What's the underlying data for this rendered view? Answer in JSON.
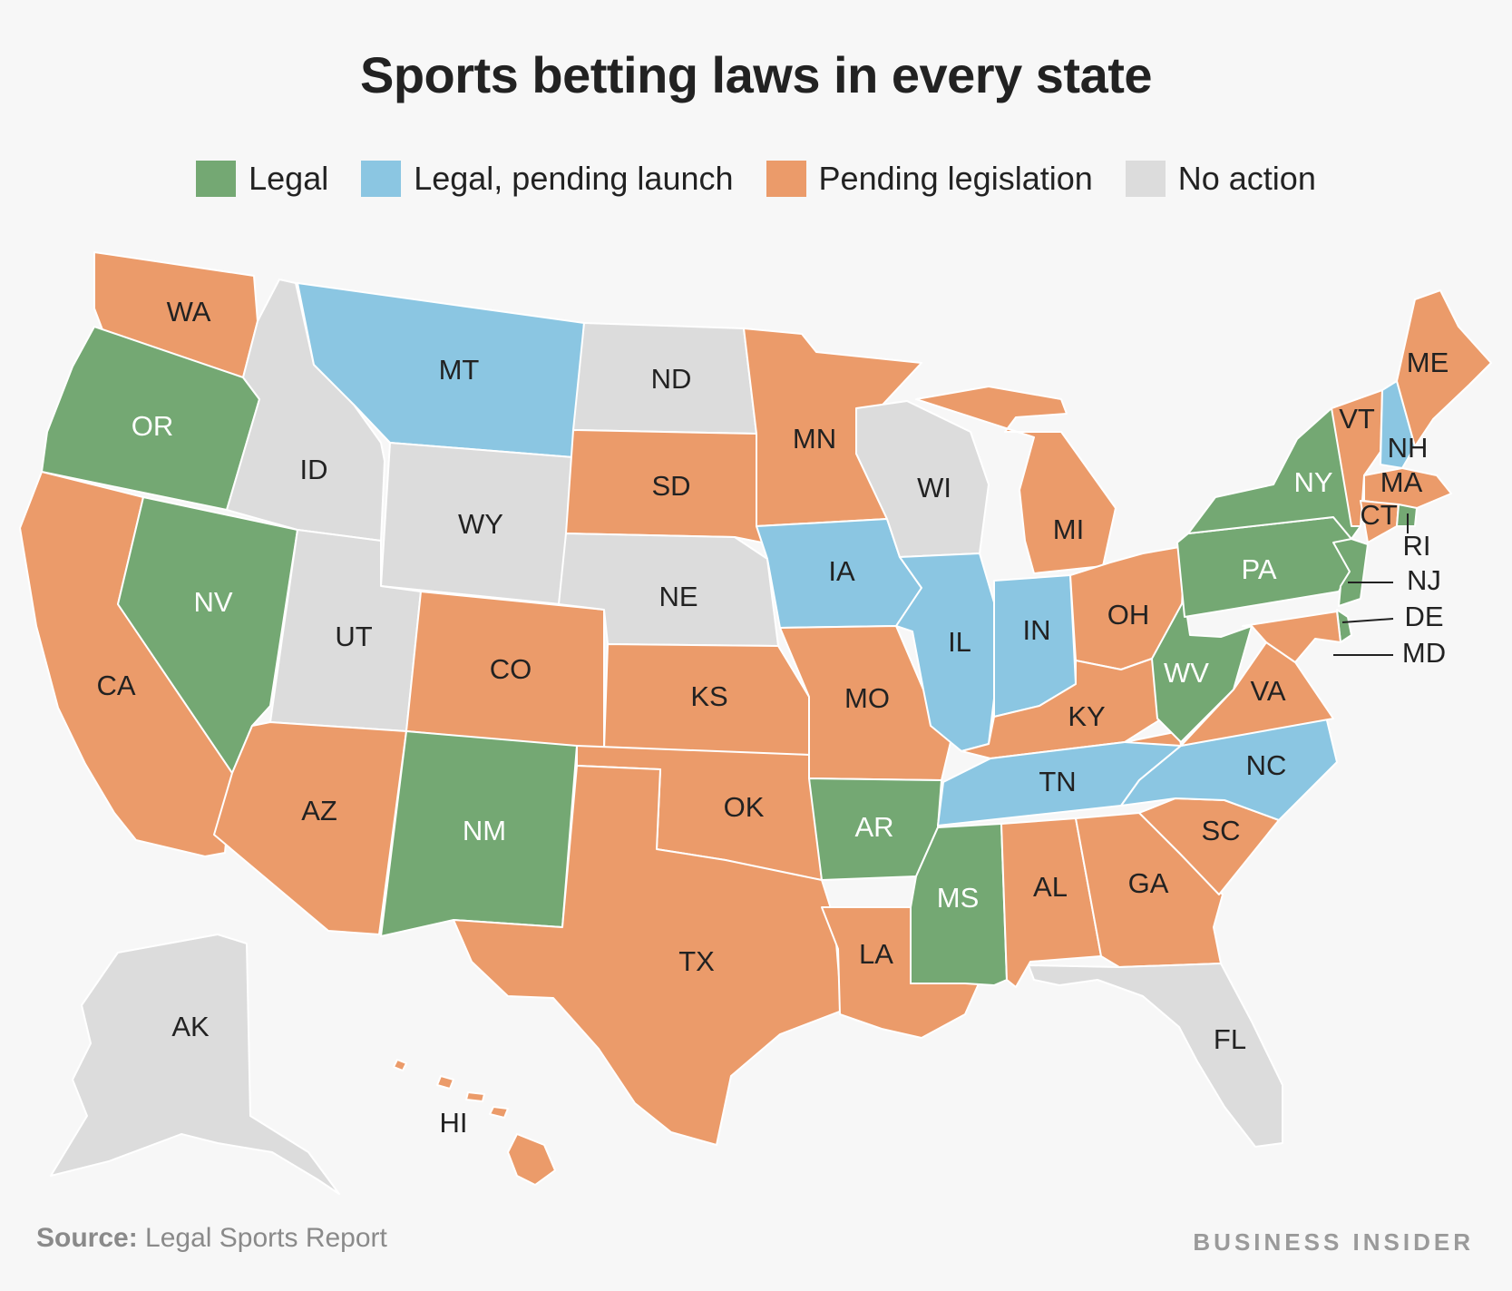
{
  "title": "Sports betting laws in every state",
  "legend": [
    {
      "key": "legal",
      "label": "Legal",
      "color": "#74a873"
    },
    {
      "key": "pending_launch",
      "label": "Legal, pending launch",
      "color": "#8bc6e2"
    },
    {
      "key": "pending_legislation",
      "label": "Pending legislation",
      "color": "#eb9b6a"
    },
    {
      "key": "no_action",
      "label": "No action",
      "color": "#dcdcdc"
    }
  ],
  "states": [
    {
      "abbr": "WA",
      "status": "pending_legislation"
    },
    {
      "abbr": "OR",
      "status": "legal"
    },
    {
      "abbr": "CA",
      "status": "pending_legislation"
    },
    {
      "abbr": "NV",
      "status": "legal"
    },
    {
      "abbr": "ID",
      "status": "no_action"
    },
    {
      "abbr": "MT",
      "status": "pending_launch"
    },
    {
      "abbr": "WY",
      "status": "no_action"
    },
    {
      "abbr": "UT",
      "status": "no_action"
    },
    {
      "abbr": "AZ",
      "status": "pending_legislation"
    },
    {
      "abbr": "CO",
      "status": "pending_legislation"
    },
    {
      "abbr": "NM",
      "status": "legal"
    },
    {
      "abbr": "ND",
      "status": "no_action"
    },
    {
      "abbr": "SD",
      "status": "pending_legislation"
    },
    {
      "abbr": "NE",
      "status": "no_action"
    },
    {
      "abbr": "KS",
      "status": "pending_legislation"
    },
    {
      "abbr": "OK",
      "status": "pending_legislation"
    },
    {
      "abbr": "TX",
      "status": "pending_legislation"
    },
    {
      "abbr": "MN",
      "status": "pending_legislation"
    },
    {
      "abbr": "IA",
      "status": "pending_launch"
    },
    {
      "abbr": "MO",
      "status": "pending_legislation"
    },
    {
      "abbr": "AR",
      "status": "legal"
    },
    {
      "abbr": "LA",
      "status": "pending_legislation"
    },
    {
      "abbr": "WI",
      "status": "no_action"
    },
    {
      "abbr": "IL",
      "status": "pending_launch"
    },
    {
      "abbr": "MI",
      "status": "pending_legislation"
    },
    {
      "abbr": "IN",
      "status": "pending_launch"
    },
    {
      "abbr": "OH",
      "status": "pending_legislation"
    },
    {
      "abbr": "KY",
      "status": "pending_legislation"
    },
    {
      "abbr": "TN",
      "status": "pending_launch"
    },
    {
      "abbr": "MS",
      "status": "legal"
    },
    {
      "abbr": "AL",
      "status": "pending_legislation"
    },
    {
      "abbr": "GA",
      "status": "pending_legislation"
    },
    {
      "abbr": "FL",
      "status": "no_action"
    },
    {
      "abbr": "SC",
      "status": "pending_legislation"
    },
    {
      "abbr": "NC",
      "status": "pending_launch"
    },
    {
      "abbr": "VA",
      "status": "pending_legislation"
    },
    {
      "abbr": "WV",
      "status": "legal"
    },
    {
      "abbr": "PA",
      "status": "legal"
    },
    {
      "abbr": "NY",
      "status": "legal"
    },
    {
      "abbr": "VT",
      "status": "pending_legislation"
    },
    {
      "abbr": "NH",
      "status": "pending_launch"
    },
    {
      "abbr": "ME",
      "status": "pending_legislation"
    },
    {
      "abbr": "MA",
      "status": "pending_legislation"
    },
    {
      "abbr": "CT",
      "status": "pending_legislation"
    },
    {
      "abbr": "RI",
      "status": "legal"
    },
    {
      "abbr": "NJ",
      "status": "legal"
    },
    {
      "abbr": "DE",
      "status": "legal"
    },
    {
      "abbr": "MD",
      "status": "pending_legislation"
    },
    {
      "abbr": "AK",
      "status": "no_action"
    },
    {
      "abbr": "HI",
      "status": "pending_legislation"
    }
  ],
  "footer": {
    "source_label": "Source:",
    "source_text": " Legal Sports Report",
    "brand": "BUSINESS INSIDER"
  }
}
